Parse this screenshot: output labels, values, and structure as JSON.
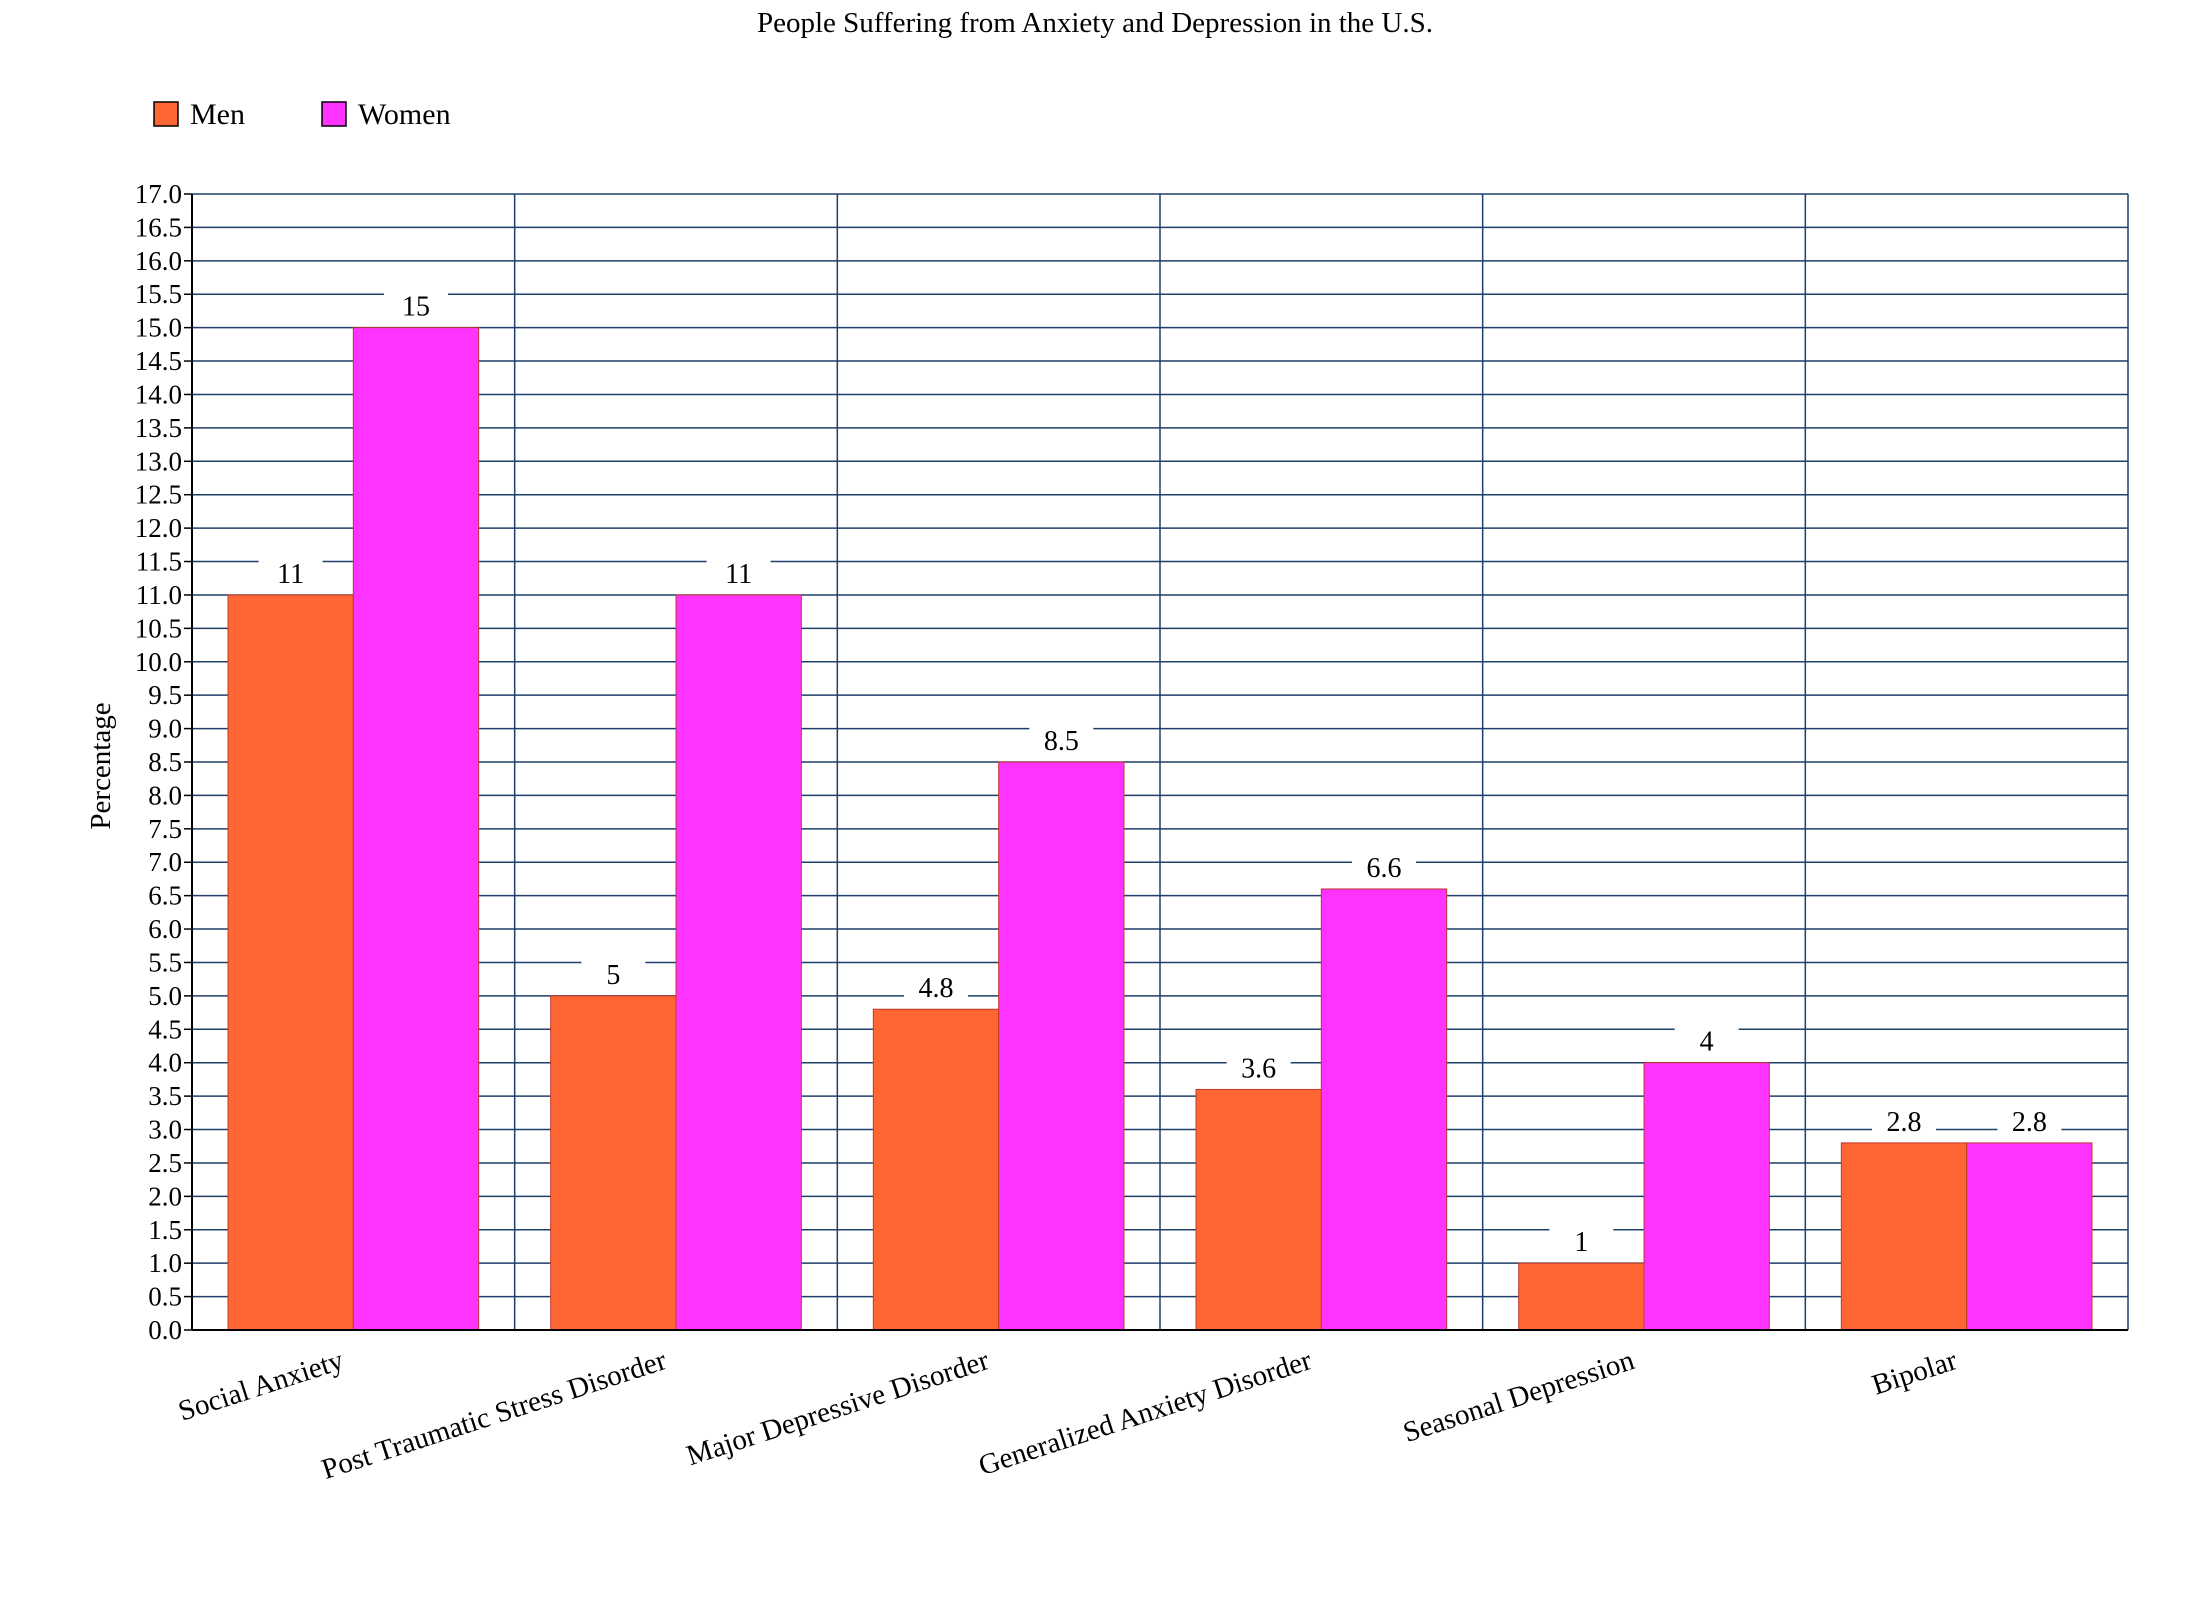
{
  "chart_data": {
    "type": "bar",
    "title": "People Suffering from Anxiety and Depression in the U.S.",
    "xlabel": "",
    "ylabel": "Percentage",
    "ylim": [
      0,
      17
    ],
    "ytick_step": 0.5,
    "grid": true,
    "legend_position": "top-left",
    "categories": [
      "Social Anxiety",
      "Post Traumatic Stress Disorder",
      "Major Depressive Disorder",
      "Generalized Anxiety Disorder",
      "Seasonal Depression",
      "Bipolar"
    ],
    "series": [
      {
        "name": "Men",
        "color": "#ff6633",
        "values": [
          11,
          5,
          4.8,
          3.6,
          1,
          2.8
        ],
        "labels": [
          "11",
          "5",
          "4.8",
          "3.6",
          "1",
          "2.8"
        ]
      },
      {
        "name": "Women",
        "color": "#ff33ff",
        "values": [
          15,
          11,
          8.5,
          6.6,
          4,
          2.8
        ],
        "labels": [
          "15",
          "11",
          "8.5",
          "6.6",
          "4",
          "2.8"
        ]
      }
    ]
  }
}
